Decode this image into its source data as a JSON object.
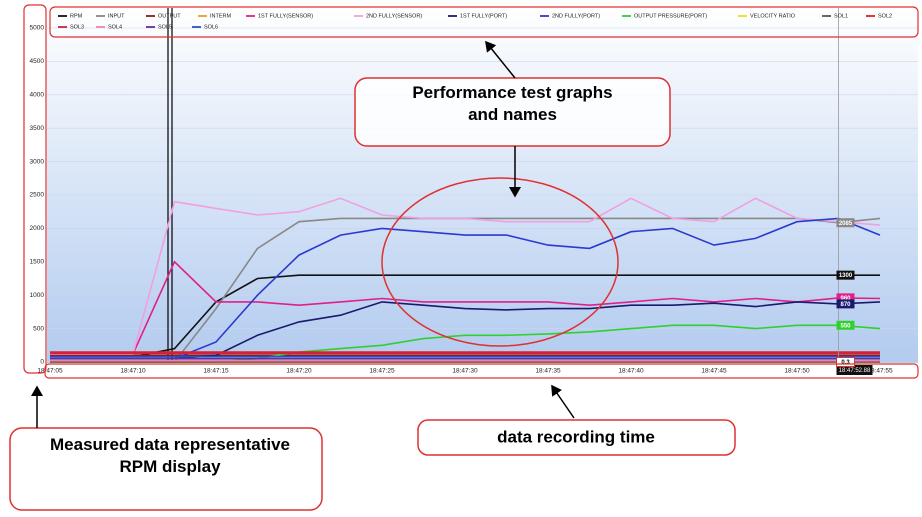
{
  "chart_data": {
    "type": "line",
    "x": [
      "18:47:05",
      null,
      "18:47:10",
      null,
      "18:47:15",
      null,
      "18:47:20",
      null,
      "18:47:25",
      null,
      "18:47:30",
      null,
      "18:47:35",
      null,
      "18:47:40",
      null,
      "18:47:45",
      null,
      "18:47:50",
      null,
      "18:47:55"
    ],
    "ylim": [
      0,
      5000
    ],
    "yticks": [
      0,
      500,
      1000,
      1500,
      2000,
      2500,
      3000,
      3500,
      4000,
      4500,
      5000
    ],
    "cursor_label": "18:47:52.88",
    "series": [
      {
        "name": "RPM",
        "color": "#111111",
        "values": [
          80,
          80,
          80,
          200,
          900,
          1250,
          1300,
          1300,
          1300,
          1300,
          1300,
          1300,
          1300,
          1300,
          1300,
          1300,
          1300,
          1300,
          1300,
          1300,
          1300
        ],
        "value_labels": [
          null,
          null,
          null,
          null,
          null,
          null,
          null,
          null,
          null,
          null,
          null,
          null,
          null,
          null,
          null,
          null,
          null,
          null,
          null,
          "1300",
          null
        ]
      },
      {
        "name": "INPUT",
        "color": "#888888",
        "values": [
          0,
          0,
          0,
          0,
          800,
          1700,
          2100,
          2150,
          2150,
          2150,
          2150,
          2150,
          2150,
          2150,
          2150,
          2150,
          2150,
          2150,
          2150,
          2085,
          2150
        ],
        "value_labels": [
          null,
          null,
          null,
          null,
          null,
          null,
          null,
          null,
          null,
          null,
          null,
          null,
          null,
          null,
          null,
          null,
          null,
          null,
          null,
          "2085",
          null
        ]
      },
      {
        "name": "OUTPUT",
        "color": "#8b1a1a",
        "values": [
          100,
          100,
          100,
          100,
          100,
          100,
          100,
          100,
          100,
          100,
          100,
          100,
          100,
          100,
          100,
          100,
          100,
          100,
          100,
          100,
          100
        ]
      },
      {
        "name": "INTERM",
        "color": "#e8a020",
        "values": [
          0,
          0,
          0,
          0,
          0,
          0,
          0,
          0,
          0,
          0,
          0,
          0,
          0,
          0,
          0,
          0,
          0,
          0,
          0,
          0,
          0
        ]
      },
      {
        "name": "1ST FULLY(SENSOR)",
        "color": "#e0208a",
        "values": [
          120,
          120,
          120,
          1500,
          900,
          900,
          850,
          900,
          950,
          900,
          900,
          900,
          900,
          850,
          900,
          950,
          900,
          950,
          900,
          960,
          950
        ],
        "value_labels": [
          null,
          null,
          null,
          null,
          null,
          null,
          null,
          null,
          null,
          null,
          null,
          null,
          null,
          null,
          null,
          null,
          null,
          null,
          null,
          "960",
          null
        ]
      },
      {
        "name": "2ND FULLY(SENSOR)",
        "color": "#f0a0e0",
        "values": [
          120,
          120,
          120,
          2400,
          2300,
          2200,
          2250,
          2450,
          2200,
          2150,
          2150,
          2100,
          2100,
          2100,
          2450,
          2150,
          2100,
          2450,
          2150,
          2100,
          2050
        ]
      },
      {
        "name": "1ST FULLY(PORT)",
        "color": "#1a1a6e",
        "values": [
          50,
          50,
          50,
          50,
          100,
          400,
          600,
          700,
          900,
          850,
          800,
          780,
          800,
          800,
          850,
          850,
          880,
          830,
          900,
          870,
          900
        ],
        "value_labels": [
          null,
          null,
          null,
          null,
          null,
          null,
          null,
          null,
          null,
          null,
          null,
          null,
          null,
          null,
          null,
          null,
          null,
          null,
          null,
          "870",
          null
        ]
      },
      {
        "name": "2ND FULLY(PORT)",
        "color": "#2a3ad0",
        "values": [
          50,
          50,
          50,
          50,
          300,
          1000,
          1600,
          1900,
          2000,
          1950,
          1900,
          1900,
          1750,
          1700,
          1950,
          2000,
          1750,
          1850,
          2100,
          2150,
          1900
        ]
      },
      {
        "name": "OUTPUT PRESSURE(PORT)",
        "color": "#30d030",
        "values": [
          0,
          0,
          0,
          0,
          0,
          50,
          150,
          200,
          250,
          350,
          400,
          400,
          420,
          450,
          500,
          550,
          550,
          500,
          550,
          550,
          500
        ],
        "value_labels": [
          null,
          null,
          null,
          null,
          null,
          null,
          null,
          null,
          null,
          null,
          null,
          null,
          null,
          null,
          null,
          null,
          null,
          null,
          null,
          "550",
          null
        ]
      },
      {
        "name": "VELOCITY RATIO",
        "color": "#e8e020",
        "values": [
          0.3,
          0.3,
          0.3,
          0.3,
          0.3,
          0.3,
          0.3,
          0.3,
          0.3,
          0.3,
          0.3,
          0.3,
          0.3,
          0.3,
          0.3,
          0.3,
          0.3,
          0.3,
          0.3,
          0.3,
          0.3
        ],
        "value_labels": [
          null,
          null,
          null,
          null,
          null,
          null,
          null,
          null,
          null,
          null,
          null,
          null,
          null,
          null,
          null,
          null,
          null,
          null,
          null,
          "0.3",
          null
        ]
      },
      {
        "name": "SOL1",
        "color": "#555555",
        "values": [
          0,
          0,
          0,
          0,
          0,
          0,
          0,
          0,
          0,
          0,
          0,
          0,
          0,
          0,
          0,
          0,
          0,
          0,
          0,
          0,
          0
        ]
      },
      {
        "name": "SOL2",
        "color": "#e02020",
        "values": [
          150,
          150,
          150,
          150,
          150,
          150,
          150,
          150,
          150,
          150,
          150,
          150,
          150,
          150,
          150,
          150,
          150,
          150,
          150,
          150,
          150
        ]
      },
      {
        "name": "SOL3",
        "color": "#d02040",
        "values": [
          130,
          130,
          130,
          130,
          130,
          130,
          130,
          130,
          130,
          130,
          130,
          130,
          130,
          130,
          130,
          130,
          130,
          130,
          130,
          130,
          130
        ]
      },
      {
        "name": "SOL4",
        "color": "#f080b0",
        "values": [
          20,
          20,
          20,
          20,
          20,
          20,
          20,
          20,
          20,
          20,
          20,
          20,
          20,
          20,
          20,
          20,
          20,
          20,
          20,
          20,
          20
        ]
      },
      {
        "name": "SOL5",
        "color": "#6a2a9a",
        "values": [
          50,
          50,
          50,
          50,
          50,
          50,
          50,
          50,
          50,
          50,
          50,
          50,
          50,
          50,
          50,
          50,
          50,
          50,
          50,
          50,
          50
        ]
      },
      {
        "name": "SOL6",
        "color": "#3050c0",
        "values": [
          80,
          80,
          80,
          80,
          80,
          80,
          80,
          80,
          80,
          80,
          80,
          80,
          80,
          80,
          80,
          80,
          80,
          80,
          80,
          80,
          80
        ]
      }
    ]
  },
  "annotations": {
    "graphs": "Performance test graphs and names",
    "time": "data recording time",
    "rpm": "Measured data representative RPM display"
  }
}
